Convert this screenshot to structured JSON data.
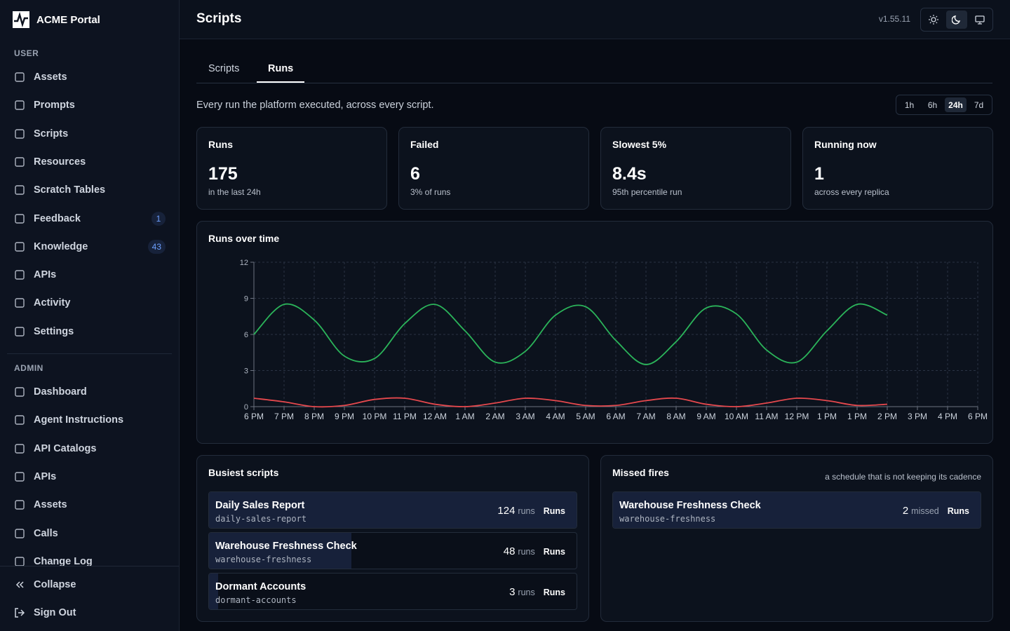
{
  "brand": "ACME Portal",
  "nav": {
    "user": {
      "title": "USER",
      "items": [
        {
          "label": "Assets"
        },
        {
          "label": "Prompts"
        },
        {
          "label": "Scripts"
        },
        {
          "label": "Resources"
        },
        {
          "label": "Scratch Tables"
        },
        {
          "label": "Feedback",
          "badge": 1
        },
        {
          "label": "Knowledge",
          "badge": 43
        },
        {
          "label": "APIs"
        },
        {
          "label": "Activity"
        },
        {
          "label": "Settings"
        }
      ]
    },
    "admin": {
      "title": "ADMIN",
      "items": [
        {
          "label": "Dashboard"
        },
        {
          "label": "Agent Instructions"
        },
        {
          "label": "API Catalogs"
        },
        {
          "label": "APIs"
        },
        {
          "label": "Assets"
        },
        {
          "label": "Calls"
        },
        {
          "label": "Change Log"
        }
      ]
    }
  },
  "footer": [
    "Collapse",
    "Sign Out"
  ],
  "header": {
    "title": "Scripts",
    "version": "v1.55.11"
  },
  "tabs": [
    "Scripts",
    "Runs"
  ],
  "description": "Every run the platform executed, across every script.",
  "ranges": [
    "1h",
    "6h",
    "24h",
    "7d"
  ],
  "stats": [
    {
      "label": "Runs",
      "value": 175,
      "note": "in the last 24h"
    },
    {
      "label": "Failed",
      "value": 6,
      "note": "3% of runs"
    },
    {
      "label": "Slowest 5%",
      "value": "8.4s",
      "note": "95th percentile run"
    },
    {
      "label": "Running now",
      "value": 1,
      "note": "across every replica"
    }
  ],
  "chart_data": {
    "type": "line",
    "title": "Runs over time",
    "categories": [
      "6 PM",
      "7 PM",
      "8 PM",
      "9 PM",
      "10 PM",
      "11 PM",
      "12 AM",
      "1 AM",
      "2 AM",
      "3 AM",
      "4 AM",
      "5 AM",
      "6 AM",
      "7 AM",
      "8 AM",
      "9 AM",
      "10 AM",
      "11 AM",
      "12 PM",
      "1 PM",
      "1 PM",
      "2 PM",
      "3 PM",
      "4 PM",
      "6 PM"
    ],
    "series": [
      {
        "color": "#2bb45a",
        "values": [
          6.0,
          8.5,
          7.2,
          4.2,
          4.0,
          6.9,
          8.5,
          6.3,
          3.7,
          4.6,
          7.6,
          8.3,
          5.5,
          3.5,
          5.4,
          8.2,
          7.7,
          4.7,
          3.7,
          6.3,
          8.5,
          7.6,
          null,
          null,
          null
        ]
      },
      {
        "color": "#e5484d",
        "values": [
          0.7,
          0.4,
          0.0,
          0.1,
          0.6,
          0.7,
          0.2,
          0.0,
          0.3,
          0.7,
          0.5,
          0.1,
          0.1,
          0.5,
          0.7,
          0.2,
          0.0,
          0.3,
          0.7,
          0.5,
          0.1,
          0.2,
          null,
          null,
          null
        ]
      }
    ],
    "ylim": [
      0,
      12
    ],
    "yticks": [
      0,
      3,
      6,
      9,
      12
    ],
    "grid": true
  },
  "busiest": {
    "title": "Busiest scripts",
    "unit": "runs",
    "action": "Runs",
    "rows": [
      {
        "name": "Daily Sales Report",
        "slug": "daily-sales-report",
        "count": 124
      },
      {
        "name": "Warehouse Freshness Check",
        "slug": "warehouse-freshness",
        "count": 48
      },
      {
        "name": "Dormant Accounts",
        "slug": "dormant-accounts",
        "count": 3
      }
    ]
  },
  "missed": {
    "title": "Missed fires",
    "subtitle": "a schedule that is not keeping its cadence",
    "unit": "missed",
    "action": "Runs",
    "rows": [
      {
        "name": "Warehouse Freshness Check",
        "slug": "warehouse-freshness",
        "count": 2
      }
    ]
  }
}
